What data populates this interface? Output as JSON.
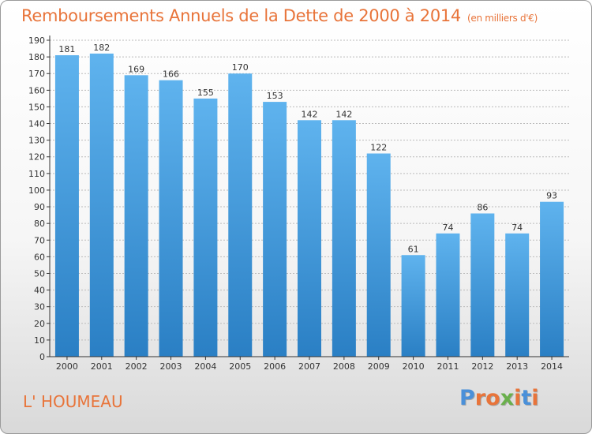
{
  "title": "Remboursements Annuels de la Dette de 2000 à 2014",
  "unit": "(en milliers d'€)",
  "commune": "L' HOUMEAU",
  "logo": {
    "text": "Proxiti",
    "letter_colors": [
      "#4a90d9",
      "#e8743a",
      "#e8743a",
      "#6ab04c",
      "#e8743a",
      "#4a90d9",
      "#e8743a"
    ]
  },
  "colors": {
    "title": "#e8743a",
    "bar_top": "#5fb3ee",
    "bar_bottom": "#2a7fc4",
    "axis": "#333333",
    "grid": "#bbbbbb"
  },
  "chart_data": {
    "type": "bar",
    "categories": [
      "2000",
      "2001",
      "2002",
      "2003",
      "2004",
      "2005",
      "2006",
      "2007",
      "2008",
      "2009",
      "2010",
      "2011",
      "2012",
      "2013",
      "2014"
    ],
    "values": [
      181,
      182,
      169,
      166,
      155,
      170,
      153,
      142,
      142,
      122,
      61,
      74,
      86,
      74,
      93
    ],
    "ylim": [
      0,
      190
    ],
    "ytick_step": 10,
    "grid": true
  }
}
